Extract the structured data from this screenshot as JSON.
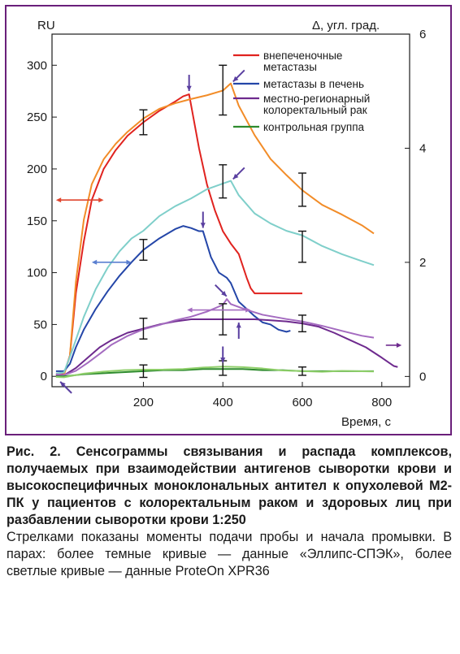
{
  "chart_data": {
    "type": "line",
    "ylabel_left": "RU",
    "ylabel_right": "Δ, угл. град.",
    "xlabel": "Время, с",
    "xlim": [
      -30,
      870
    ],
    "ylim_left": [
      -10,
      330
    ],
    "ylim_right": [
      -0.18,
      6
    ],
    "x_ticks": [
      "200",
      "400",
      "600",
      "800"
    ],
    "y_ticks_left": [
      "0",
      "50",
      "100",
      "150",
      "200",
      "250",
      "300"
    ],
    "y_ticks_right": [
      "0",
      "2",
      "4",
      "6"
    ],
    "grid": false,
    "legend_position": "top-right",
    "series": [
      {
        "name": "внепеченочные метастазы",
        "color": "#e0231f",
        "dataset": "Эллипс-СПЭК",
        "x": [
          -20,
          0,
          15,
          30,
          50,
          70,
          100,
          130,
          160,
          200,
          240,
          280,
          300,
          315,
          340,
          360,
          380,
          400,
          420,
          440,
          460,
          470,
          480,
          500,
          550,
          600
        ],
        "y": [
          2,
          2,
          20,
          80,
          130,
          170,
          200,
          218,
          232,
          245,
          256,
          265,
          270,
          272,
          220,
          185,
          160,
          140,
          128,
          118,
          95,
          85,
          80,
          80,
          80,
          80
        ]
      },
      {
        "name": "",
        "color": "#f28c28",
        "dataset": "ProteOn XPR36",
        "x": [
          -20,
          0,
          15,
          30,
          50,
          70,
          100,
          130,
          160,
          200,
          240,
          280,
          320,
          360,
          400,
          420,
          440,
          480,
          520,
          560,
          600,
          650,
          700,
          750,
          780
        ],
        "y": [
          2,
          2,
          20,
          90,
          150,
          185,
          210,
          225,
          236,
          248,
          257,
          263,
          268,
          272,
          276,
          282,
          260,
          232,
          210,
          195,
          180,
          165,
          155,
          145,
          138
        ]
      },
      {
        "name": "метастазы в печень",
        "color": "#2446a8",
        "dataset": "Эллипс-СПЭК",
        "x": [
          -20,
          0,
          15,
          30,
          50,
          80,
          110,
          140,
          170,
          200,
          240,
          280,
          300,
          320,
          340,
          350,
          370,
          390,
          410,
          420,
          440,
          460,
          480,
          500,
          520,
          540,
          560,
          570
        ],
        "y": [
          5,
          5,
          12,
          28,
          45,
          65,
          82,
          97,
          110,
          122,
          133,
          142,
          145,
          143,
          140,
          140,
          115,
          100,
          95,
          90,
          72,
          65,
          58,
          52,
          50,
          45,
          43,
          44
        ]
      },
      {
        "name": "",
        "color": "#7fcfca",
        "dataset": "ProteOn XPR36",
        "x": [
          -20,
          0,
          15,
          30,
          50,
          80,
          110,
          140,
          170,
          200,
          240,
          280,
          320,
          360,
          400,
          420,
          440,
          480,
          520,
          560,
          600,
          650,
          700,
          750,
          780
        ],
        "y": [
          3,
          3,
          18,
          35,
          58,
          85,
          105,
          120,
          132,
          140,
          155,
          165,
          172,
          180,
          185,
          188,
          175,
          158,
          148,
          140,
          135,
          125,
          118,
          112,
          108
        ]
      },
      {
        "name": "местно-регионарный колоректальный рак",
        "color": "#6e2a8e",
        "dataset": "Эллипс-СПЭК",
        "x": [
          -20,
          0,
          30,
          60,
          90,
          120,
          160,
          200,
          240,
          280,
          320,
          360,
          400,
          440,
          480,
          520,
          560,
          600,
          640,
          680,
          720,
          760,
          800,
          830,
          840
        ],
        "y": [
          1,
          1,
          8,
          18,
          28,
          35,
          42,
          46,
          50,
          53,
          55,
          55,
          55,
          55,
          55,
          54,
          53,
          51,
          48,
          42,
          35,
          28,
          18,
          10,
          9
        ]
      },
      {
        "name": "",
        "color": "#a46bc0",
        "dataset": "ProteOn XPR36",
        "x": [
          -20,
          0,
          30,
          60,
          90,
          120,
          160,
          200,
          240,
          280,
          320,
          360,
          400,
          410,
          420,
          460,
          500,
          560,
          600,
          650,
          700,
          750,
          780
        ],
        "y": [
          1,
          1,
          6,
          14,
          22,
          30,
          38,
          45,
          50,
          55,
          58,
          62,
          68,
          74,
          70,
          65,
          60,
          55,
          52,
          48,
          44,
          40,
          38
        ]
      },
      {
        "name": "контрольная группа",
        "color": "#2e8b2e",
        "dataset": "Эллипс-СПЭК",
        "x": [
          -20,
          0,
          50,
          100,
          150,
          200,
          250,
          300,
          350,
          400,
          450,
          500,
          550,
          600,
          650,
          700,
          750,
          780
        ],
        "y": [
          0,
          0,
          2,
          3,
          4,
          5,
          6,
          6,
          7,
          7,
          7,
          6,
          6,
          5,
          5,
          5,
          5,
          5
        ]
      },
      {
        "name": "",
        "color": "#8fcf6a",
        "dataset": "ProteOn XPR36",
        "x": [
          -20,
          0,
          50,
          100,
          150,
          200,
          250,
          300,
          350,
          400,
          450,
          500,
          550,
          600,
          650,
          700,
          750,
          780
        ],
        "y": [
          0,
          0,
          3,
          4,
          5,
          6,
          7,
          8,
          9,
          9,
          8,
          7,
          6,
          6,
          5,
          5,
          4,
          4
        ]
      }
    ],
    "error_bars": [
      {
        "x": 200,
        "y": 245,
        "err": 12
      },
      {
        "x": 400,
        "y": 276,
        "err": 24
      },
      {
        "x": 200,
        "y": 122,
        "err": 10
      },
      {
        "x": 400,
        "y": 188,
        "err": 16
      },
      {
        "x": 600,
        "y": 180,
        "err": 16
      },
      {
        "x": 600,
        "y": 125,
        "err": 15
      },
      {
        "x": 200,
        "y": 46,
        "err": 10
      },
      {
        "x": 400,
        "y": 55,
        "err": 15
      },
      {
        "x": 600,
        "y": 51,
        "err": 8
      },
      {
        "x": 200,
        "y": 5,
        "err": 6
      },
      {
        "x": 400,
        "y": 8,
        "err": 7
      },
      {
        "x": 600,
        "y": 5,
        "err": 4
      }
    ],
    "injection_arrows": [
      {
        "x": 315,
        "y": 272,
        "dir": "down",
        "color": "#5a3fa0"
      },
      {
        "x": 420,
        "y": 282,
        "dir": "down-left",
        "color": "#5a3fa0"
      },
      {
        "x": 420,
        "y": 188,
        "dir": "down-left",
        "color": "#5a3fa0"
      },
      {
        "x": 350,
        "y": 140,
        "dir": "down",
        "color": "#5a3fa0"
      },
      {
        "x": 415,
        "y": 75,
        "dir": "down-left-rev",
        "color": "#5a3fa0"
      },
      {
        "x": 440,
        "y": 55,
        "dir": "up",
        "color": "#5a3fa0"
      },
      {
        "x": 400,
        "y": 10,
        "dir": "down",
        "color": "#5a3fa0"
      },
      {
        "x": -15,
        "y": -3,
        "dir": "up-left",
        "color": "#5a3fa0"
      }
    ],
    "axis_arrows": [
      {
        "x1": -20,
        "x2": 100,
        "y": 170,
        "color": "#e0462f"
      },
      {
        "x1": 70,
        "x2": 170,
        "y": 110,
        "color": "#5a7fd0"
      },
      {
        "x1": 310,
        "x2": 470,
        "y": 64,
        "color": "#a46bc0"
      },
      {
        "x1": 800,
        "x2": 850,
        "y": 30,
        "color": "#6e2a8e"
      }
    ]
  },
  "caption": {
    "bold": "Рис. 2. Сенсограммы связывания и распада комплексов, получаемых при взаимодействии антигенов сыворотки крови и высокоспецифичных моноклональных антител к опухолевой М2-ПК у пациентов с колоректальным раком и здоровых лиц при разбавлении сыворотки крови 1:250",
    "note": "Стрелками показаны моменты подачи пробы и начала промывки. В парах: более темные кривые — данные «Эллипс-СПЭК», более светлые кривые — данные ProteOn XPR36"
  },
  "legend": {
    "line1a": "внепеченочные",
    "line1b": "метастазы",
    "line2": "метастазы в печень",
    "line3a": "местно-регионарный",
    "line3b": "колоректальный рак",
    "line4": "контрольная группа"
  }
}
